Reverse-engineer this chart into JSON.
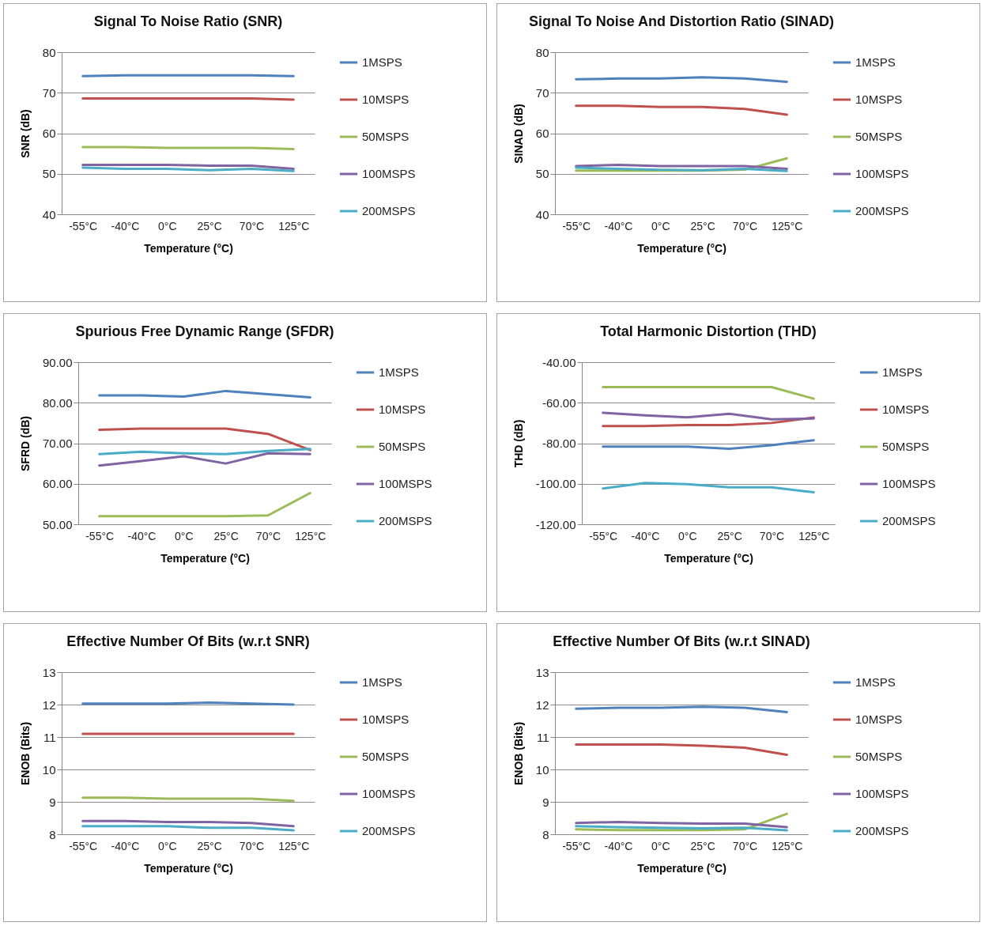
{
  "chart_data": [
    {
      "type": "line",
      "title": "Signal To Noise Ratio (SNR)",
      "xlabel": "Temperature (°C)",
      "ylabel": "SNR (dB)",
      "categories": [
        "-55°C",
        "-40°C",
        "0°C",
        "25°C",
        "70°C",
        "125°C"
      ],
      "ylim": [
        40,
        80
      ],
      "yticks": [
        40,
        50,
        60,
        70,
        80
      ],
      "grid": "y",
      "legend": "right",
      "series": [
        {
          "name": "1MSPS",
          "color": "#4f81bd",
          "values": [
            74.1,
            74.3,
            74.3,
            74.3,
            74.3,
            74.1
          ]
        },
        {
          "name": "10MSPS",
          "color": "#c0504d",
          "values": [
            68.6,
            68.6,
            68.6,
            68.6,
            68.6,
            68.3
          ]
        },
        {
          "name": "50MSPS",
          "color": "#9bbb59",
          "values": [
            56.6,
            56.6,
            56.4,
            56.4,
            56.4,
            56.1
          ]
        },
        {
          "name": "100MSPS",
          "color": "#8064a2",
          "values": [
            52.2,
            52.2,
            52.2,
            52.0,
            52.0,
            51.2
          ]
        },
        {
          "name": "200MSPS",
          "color": "#4bacc6",
          "values": [
            51.5,
            51.2,
            51.2,
            50.9,
            51.2,
            50.7
          ]
        }
      ]
    },
    {
      "type": "line",
      "title": "Signal To Noise And Distortion Ratio (SINAD)",
      "xlabel": "Temperature (°C)",
      "ylabel": "SINAD (dB)",
      "categories": [
        "-55°C",
        "-40°C",
        "0°C",
        "25°C",
        "70°C",
        "125°C"
      ],
      "ylim": [
        40,
        80
      ],
      "yticks": [
        40,
        50,
        60,
        70,
        80
      ],
      "grid": "y",
      "legend": "right",
      "series": [
        {
          "name": "1MSPS",
          "color": "#4f81bd",
          "values": [
            73.3,
            73.5,
            73.5,
            73.8,
            73.5,
            72.7
          ]
        },
        {
          "name": "10MSPS",
          "color": "#c0504d",
          "values": [
            66.8,
            66.8,
            66.5,
            66.5,
            66.0,
            64.6
          ]
        },
        {
          "name": "50MSPS",
          "color": "#9bbb59",
          "values": [
            50.8,
            50.8,
            50.8,
            50.8,
            51.0,
            53.8
          ]
        },
        {
          "name": "100MSPS",
          "color": "#8064a2",
          "values": [
            51.9,
            52.2,
            51.9,
            51.9,
            51.9,
            51.2
          ]
        },
        {
          "name": "200MSPS",
          "color": "#4bacc6",
          "values": [
            51.5,
            51.2,
            51.0,
            50.9,
            51.2,
            50.7
          ]
        }
      ]
    },
    {
      "type": "line",
      "title": "Spurious Free Dynamic Range (SFDR)",
      "xlabel": "Temperature (°C)",
      "ylabel": "SFRD (dB)",
      "categories": [
        "-55°C",
        "-40°C",
        "0°C",
        "25°C",
        "70°C",
        "125°C"
      ],
      "ylim": [
        50,
        90
      ],
      "yticks": [
        {
          "value": 50,
          "label": "50.00"
        },
        {
          "value": 60,
          "label": "60.00"
        },
        {
          "value": 70,
          "label": "70.00"
        },
        {
          "value": 80,
          "label": "80.00"
        },
        {
          "value": 90,
          "label": "90.00"
        }
      ],
      "grid": "y",
      "legend": "right",
      "series": [
        {
          "name": "1MSPS",
          "color": "#4f81bd",
          "values": [
            81.8,
            81.8,
            81.5,
            82.9,
            82.1,
            81.3
          ]
        },
        {
          "name": "10MSPS",
          "color": "#c0504d",
          "values": [
            73.3,
            73.6,
            73.6,
            73.6,
            72.3,
            68.3
          ]
        },
        {
          "name": "50MSPS",
          "color": "#9bbb59",
          "values": [
            52.0,
            52.0,
            52.0,
            52.0,
            52.2,
            57.7
          ]
        },
        {
          "name": "100MSPS",
          "color": "#8064a2",
          "values": [
            64.5,
            65.6,
            66.8,
            65.0,
            67.5,
            67.3
          ]
        },
        {
          "name": "200MSPS",
          "color": "#4bacc6",
          "values": [
            67.3,
            67.9,
            67.5,
            67.3,
            68.1,
            68.6
          ]
        }
      ]
    },
    {
      "type": "line",
      "title": "Total Harmonic Distortion (THD)",
      "xlabel": "Temperature (°C)",
      "ylabel": "THD (dB)",
      "categories": [
        "-55°C",
        "-40°C",
        "0°C",
        "25°C",
        "70°C",
        "125°C"
      ],
      "ylim": [
        -120,
        -40
      ],
      "yticks": [
        {
          "value": -120,
          "label": "-120.00"
        },
        {
          "value": -100,
          "label": "-100.00"
        },
        {
          "value": -80,
          "label": "-80.00"
        },
        {
          "value": -60,
          "label": "-60.00"
        },
        {
          "value": -40,
          "label": "-40.00"
        }
      ],
      "grid": "y",
      "legend": "right",
      "series": [
        {
          "name": "1MSPS",
          "color": "#4f81bd",
          "values": [
            -81.7,
            -81.7,
            -81.7,
            -82.7,
            -81.0,
            -78.5
          ]
        },
        {
          "name": "10MSPS",
          "color": "#c0504d",
          "values": [
            -71.5,
            -71.5,
            -71.0,
            -71.0,
            -70.0,
            -67.3
          ]
        },
        {
          "name": "50MSPS",
          "color": "#9bbb59",
          "values": [
            -52.3,
            -52.3,
            -52.3,
            -52.3,
            -52.3,
            -58.0
          ]
        },
        {
          "name": "100MSPS",
          "color": "#8064a2",
          "values": [
            -65.0,
            -66.2,
            -67.2,
            -65.5,
            -68.2,
            -67.8
          ]
        },
        {
          "name": "200MSPS",
          "color": "#4bacc6",
          "values": [
            -102.3,
            -99.6,
            -100.2,
            -101.8,
            -101.8,
            -104.2
          ]
        }
      ]
    },
    {
      "type": "line",
      "title": "Effective Number Of Bits (w.r.t SNR)",
      "xlabel": "Temperature (°C)",
      "ylabel": "ENOB (Bits)",
      "categories": [
        "-55°C",
        "-40°C",
        "0°C",
        "25°C",
        "70°C",
        "125°C"
      ],
      "ylim": [
        8,
        13
      ],
      "yticks": [
        8,
        9,
        10,
        11,
        12,
        13
      ],
      "grid": "y",
      "legend": "right",
      "series": [
        {
          "name": "1MSPS",
          "color": "#4f81bd",
          "values": [
            12.03,
            12.03,
            12.03,
            12.06,
            12.03,
            12.0
          ]
        },
        {
          "name": "10MSPS",
          "color": "#c0504d",
          "values": [
            11.1,
            11.1,
            11.1,
            11.1,
            11.1,
            11.1
          ]
        },
        {
          "name": "50MSPS",
          "color": "#9bbb59",
          "values": [
            9.13,
            9.13,
            9.1,
            9.1,
            9.1,
            9.03
          ]
        },
        {
          "name": "100MSPS",
          "color": "#8064a2",
          "values": [
            8.41,
            8.41,
            8.38,
            8.38,
            8.35,
            8.25
          ]
        },
        {
          "name": "200MSPS",
          "color": "#4bacc6",
          "values": [
            8.25,
            8.25,
            8.25,
            8.2,
            8.2,
            8.12
          ]
        }
      ]
    },
    {
      "type": "line",
      "title": "Effective Number Of Bits (w.r.t SINAD)",
      "xlabel": "Temperature (°C)",
      "ylabel": "ENOB (Bits)",
      "categories": [
        "-55°C",
        "-40°C",
        "0°C",
        "25°C",
        "70°C",
        "125°C"
      ],
      "ylim": [
        8,
        13
      ],
      "yticks": [
        8,
        9,
        10,
        11,
        12,
        13
      ],
      "grid": "y",
      "legend": "right",
      "series": [
        {
          "name": "1MSPS",
          "color": "#4f81bd",
          "values": [
            11.87,
            11.9,
            11.9,
            11.93,
            11.9,
            11.77
          ]
        },
        {
          "name": "10MSPS",
          "color": "#c0504d",
          "values": [
            10.77,
            10.77,
            10.77,
            10.73,
            10.67,
            10.45
          ]
        },
        {
          "name": "50MSPS",
          "color": "#9bbb59",
          "values": [
            8.15,
            8.13,
            8.13,
            8.13,
            8.15,
            8.63
          ]
        },
        {
          "name": "100MSPS",
          "color": "#8064a2",
          "values": [
            8.35,
            8.38,
            8.35,
            8.33,
            8.33,
            8.22
          ]
        },
        {
          "name": "200MSPS",
          "color": "#4bacc6",
          "values": [
            8.25,
            8.22,
            8.2,
            8.18,
            8.2,
            8.12
          ]
        }
      ]
    }
  ]
}
